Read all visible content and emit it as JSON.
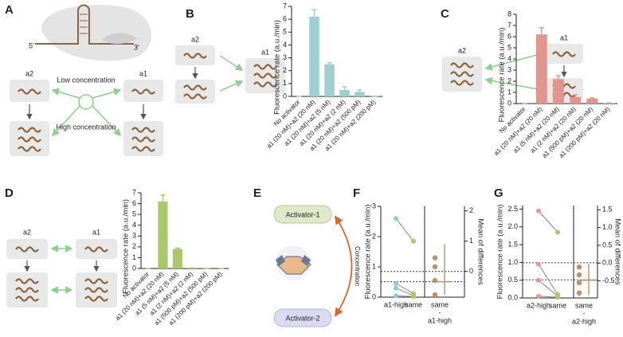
{
  "panel_a": {
    "label": "A",
    "five_prime": "5'",
    "three_prime": "3'",
    "a2": "a2",
    "a1": "a1",
    "low": "Low concentration",
    "high": "High concentration"
  },
  "panel_b": {
    "label": "B",
    "a2": "a2",
    "a1": "a1"
  },
  "panel_c": {
    "label": "C",
    "a2": "a2",
    "a1": "a1"
  },
  "panel_d": {
    "label": "D",
    "a2": "a2",
    "a1": "a1"
  },
  "panel_e": {
    "label": "E",
    "top": "Activator-1",
    "bottom": "Activator-2",
    "arrow": "Concentration"
  },
  "chart_data": [
    {
      "type": "bar",
      "y_label": "Fluorescence rate (a.u./min)",
      "categories": [
        "No activator",
        "a1 (20 nM)+a2 (20 nM)",
        "a1 (20 nM)+a2 (5 nM)",
        "a1 (20 nM)+a2 (2 nM)",
        "a1 (20 nM)+a2 (500 pM)",
        "a1 (20 nM)+a2 (200 pM)"
      ],
      "values": [
        0,
        6.2,
        2.5,
        0.5,
        0.35,
        0.02
      ],
      "errors": [
        0,
        0.55,
        0.12,
        0.25,
        0.15,
        0
      ],
      "color": "#9fd0cf",
      "ylim": [
        0,
        7
      ],
      "yticks": [
        0,
        1,
        2,
        3,
        4,
        5,
        6,
        7
      ]
    },
    {
      "type": "bar",
      "y_label": "Fluorescence rate (a.u./min)",
      "categories": [
        "No activator",
        "a1 (20 nM)+a2 (20 nM)",
        "a1 (5 nM)+a2 (20 nM)",
        "a1 (2 nM)+a2 (20 nM)",
        "a1 (500 pM)+a2 (20 nM)",
        "a1 (200 pM)+a2 (20 nM)"
      ],
      "values": [
        0,
        6.2,
        2.2,
        0.6,
        0.45,
        0.05
      ],
      "errors": [
        0,
        0.6,
        0.3,
        0.2,
        0.05,
        0
      ],
      "color": "#e0968f",
      "ylim": [
        0,
        8
      ],
      "yticks": [
        0,
        1,
        2,
        3,
        4,
        5,
        6,
        7,
        8
      ]
    },
    {
      "type": "bar",
      "y_label": "Fluorescence rate (a.u./min)",
      "categories": [
        "No activator",
        "a1 (20 nM)+a2 (20 nM)",
        "a1 (5 nM)+a2 (5 nM)",
        "a1 (2 nM)+a2 (2 nM)",
        "a1 (500 pM)+a2 (500 pM)",
        "a1 (200 pM)+a2 (200 pM)"
      ],
      "values": [
        0,
        6.2,
        1.8,
        0.05,
        0.02,
        0.01
      ],
      "errors": [
        0,
        0.6,
        0.08,
        0,
        0,
        0
      ],
      "color": "#aac76c",
      "ylim": [
        0,
        7
      ],
      "yticks": [
        0,
        1,
        2,
        3,
        4,
        5,
        6,
        7
      ]
    },
    {
      "type": "estimation",
      "label": "F",
      "y_label": "Fluorescence rate (a.u./min)",
      "y2_label": "Mean of differences",
      "groups": [
        {
          "label": "a1-high",
          "color": "#8ccfcf",
          "values": [
            2.6,
            0.45,
            0.3,
            0.05
          ],
          "mean": 0.85
        },
        {
          "label": "same",
          "color": "#aac76c",
          "values": [
            1.85,
            0.12,
            0.05,
            0.02
          ],
          "mean": 0.51
        }
      ],
      "difference": {
        "label_lines": [
          "same",
          "-",
          "a1-high"
        ],
        "color": "#b8926a",
        "values": [
          0.45,
          0.15,
          -0.3,
          -0.77
        ],
        "mean": -0.34,
        "ci": [
          -0.77,
          0.9
        ]
      },
      "ylim": [
        0,
        3
      ],
      "yticks": [
        0,
        1,
        2,
        3
      ],
      "y2lim": [
        -0.85,
        2.15
      ],
      "y2ticks": [
        0,
        1,
        2
      ]
    },
    {
      "type": "estimation",
      "label": "G",
      "y_label": "Fluorescence rate (a.u./min)",
      "y2_label": "Mean of differences",
      "groups": [
        {
          "label": "a2-high",
          "color": "#e39b94",
          "values": [
            2.45,
            0.95,
            0.5,
            0.05
          ],
          "mean": 0.99
        },
        {
          "label": "same",
          "color": "#aac76c",
          "values": [
            1.85,
            0.1,
            0.05,
            0.02
          ],
          "mean": 0.51
        }
      ],
      "difference": {
        "label_lines": [
          "same",
          "-",
          "a2-high"
        ],
        "color": "#b8926a",
        "values": [
          -0.11,
          -0.33,
          -0.55,
          -0.84
        ],
        "mean": -0.48,
        "ci": [
          -0.9,
          -0.02
        ]
      },
      "ylim": [
        0,
        2.6
      ],
      "yticks": [
        {
          "value": 0,
          "label": "0.0"
        },
        {
          "value": 0.5,
          "label": "0.5"
        },
        {
          "value": 1,
          "label": "1.0"
        },
        {
          "value": 1.5,
          "label": "1.5"
        },
        {
          "value": 2,
          "label": "2.0"
        },
        {
          "value": 2.5,
          "label": "2.5"
        }
      ],
      "y2lim": [
        -0.98,
        1.62
      ],
      "y2ticks": [
        {
          "value": -0.5,
          "label": "-0.5"
        },
        {
          "value": 0,
          "label": "0.0"
        },
        {
          "value": 0.5,
          "label": "0.5"
        },
        {
          "value": 1,
          "label": "1.0"
        },
        {
          "value": 1.5,
          "label": "1.5"
        }
      ]
    }
  ]
}
